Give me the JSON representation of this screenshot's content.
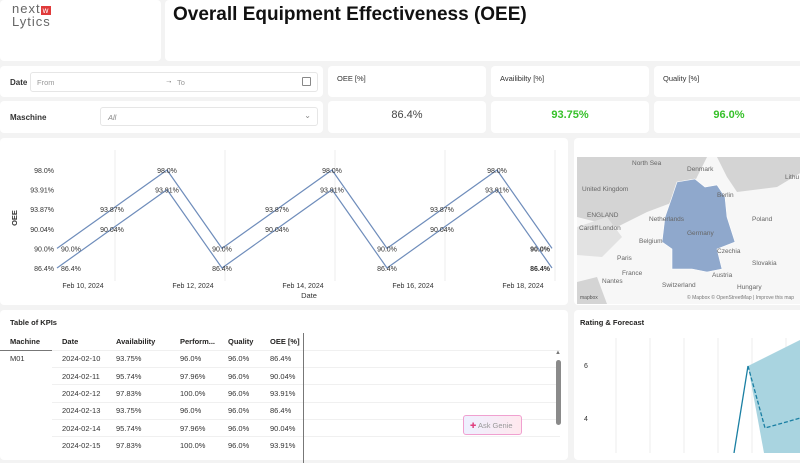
{
  "header": {
    "logo_text": "nextLytics",
    "title": "Overall Equipment Effectiveness (OEE)"
  },
  "filters": {
    "date_label": "Date",
    "from_placeholder": "From",
    "to_placeholder": "To",
    "machine_label": "Maschine",
    "machine_value": "All"
  },
  "kpis": [
    {
      "label": "OEE [%]",
      "value": "86.4%",
      "color": "#444444"
    },
    {
      "label": "Availibilty [%]",
      "value": "93.75%",
      "color": "#37c12a"
    },
    {
      "label": "Quality [%]",
      "value": "96.0%",
      "color": "#37c12a"
    }
  ],
  "chart_data": [
    {
      "type": "line",
      "xlabel": "Date",
      "ylabel": "OEE",
      "x": [
        "2024-02-10",
        "2024-02-11",
        "2024-02-12",
        "2024-02-13",
        "2024-02-14",
        "2024-02-15",
        "2024-02-16",
        "2024-02-17",
        "2024-02-18",
        "2024-02-19"
      ],
      "x_tick_labels": [
        "Feb 10, 2024",
        "Feb 12, 2024",
        "Feb 14, 2024",
        "Feb 16, 2024",
        "Feb 18, 2024"
      ],
      "y_tick_labels": [
        "86.4%",
        "90.0%",
        "90.04%",
        "93.87%",
        "93.91%",
        "98.0%"
      ],
      "y_scale": "categorical",
      "series": [
        {
          "values": [
            "90.0%",
            "93.87%",
            "98.0%",
            "90.0%",
            "93.87%",
            "98.0%",
            "90.0%",
            "93.87%",
            "98.0%",
            "90.0%"
          ]
        },
        {
          "values": [
            "86.4%",
            "90.04%",
            "93.91%",
            "86.4%",
            "90.04%",
            "93.91%",
            "86.4%",
            "90.04%",
            "93.91%",
            "86.4%"
          ]
        }
      ],
      "color": "#6f8dbb",
      "grid": "vertical"
    },
    {
      "type": "line",
      "title": "Rating & Forecast",
      "y_tick_labels": [
        "6",
        "4"
      ],
      "color": "#1a7fa3",
      "band_color": "#a9d4e0"
    }
  ],
  "map": {
    "labels": [
      "North Sea",
      "Denmark",
      "United Kingdom",
      "ENGLAND",
      "London",
      "Cardiff",
      "Netherlands",
      "Belgium",
      "Germany",
      "Berlin",
      "Poland",
      "Czechia",
      "Slovakia",
      "Austria",
      "Hungary",
      "Switzerland",
      "France",
      "Paris",
      "Nantes",
      "Lithu"
    ],
    "attribution": "© Mapbox © OpenStreetMap | Improve this map",
    "logo": "mapbox",
    "highlight_color": "#8fa8cc"
  },
  "table": {
    "title": "Table of KPIs",
    "columns": [
      "Machine",
      "Date",
      "Availability",
      "Perform...",
      "Quality",
      "OEE [%]"
    ],
    "rows": [
      [
        "M01",
        "2024-02-10",
        "93.75%",
        "96.0%",
        "96.0%",
        "86.4%"
      ],
      [
        "",
        "2024-02-11",
        "95.74%",
        "97.96%",
        "96.0%",
        "90.04%"
      ],
      [
        "",
        "2024-02-12",
        "97.83%",
        "100.0%",
        "96.0%",
        "93.91%"
      ],
      [
        "",
        "2024-02-13",
        "93.75%",
        "96.0%",
        "96.0%",
        "86.4%"
      ],
      [
        "",
        "2024-02-14",
        "95.74%",
        "97.96%",
        "96.0%",
        "90.04%"
      ],
      [
        "",
        "2024-02-15",
        "97.83%",
        "100.0%",
        "96.0%",
        "93.91%"
      ]
    ]
  },
  "genie": {
    "label": "Ask Genie"
  }
}
